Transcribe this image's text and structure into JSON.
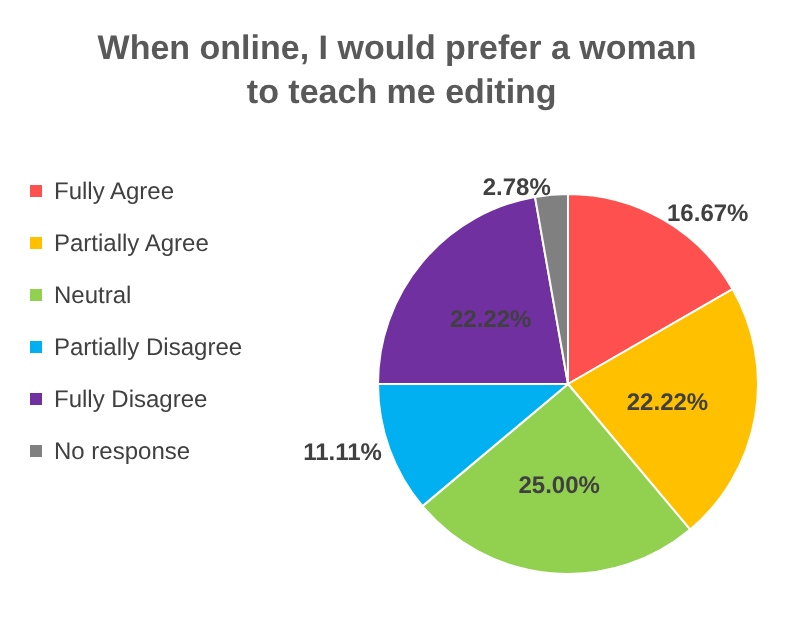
{
  "chart_data": {
    "type": "pie",
    "title": "When online, I would prefer a woman to teach me editing",
    "categories": [
      "Fully Agree",
      "Partially Agree",
      "Neutral",
      "Partially Disagree",
      "Fully Disagree",
      "No response"
    ],
    "values": [
      16.67,
      22.22,
      25.0,
      11.11,
      22.22,
      2.78
    ],
    "colors": [
      "#ff5050",
      "#ffc000",
      "#92d050",
      "#00b0f0",
      "#7030a0",
      "#808080"
    ],
    "value_labels": [
      "16.67%",
      "22.22%",
      "25.00%",
      "11.11%",
      "22.22%",
      "2.78%"
    ],
    "legend": "left"
  }
}
